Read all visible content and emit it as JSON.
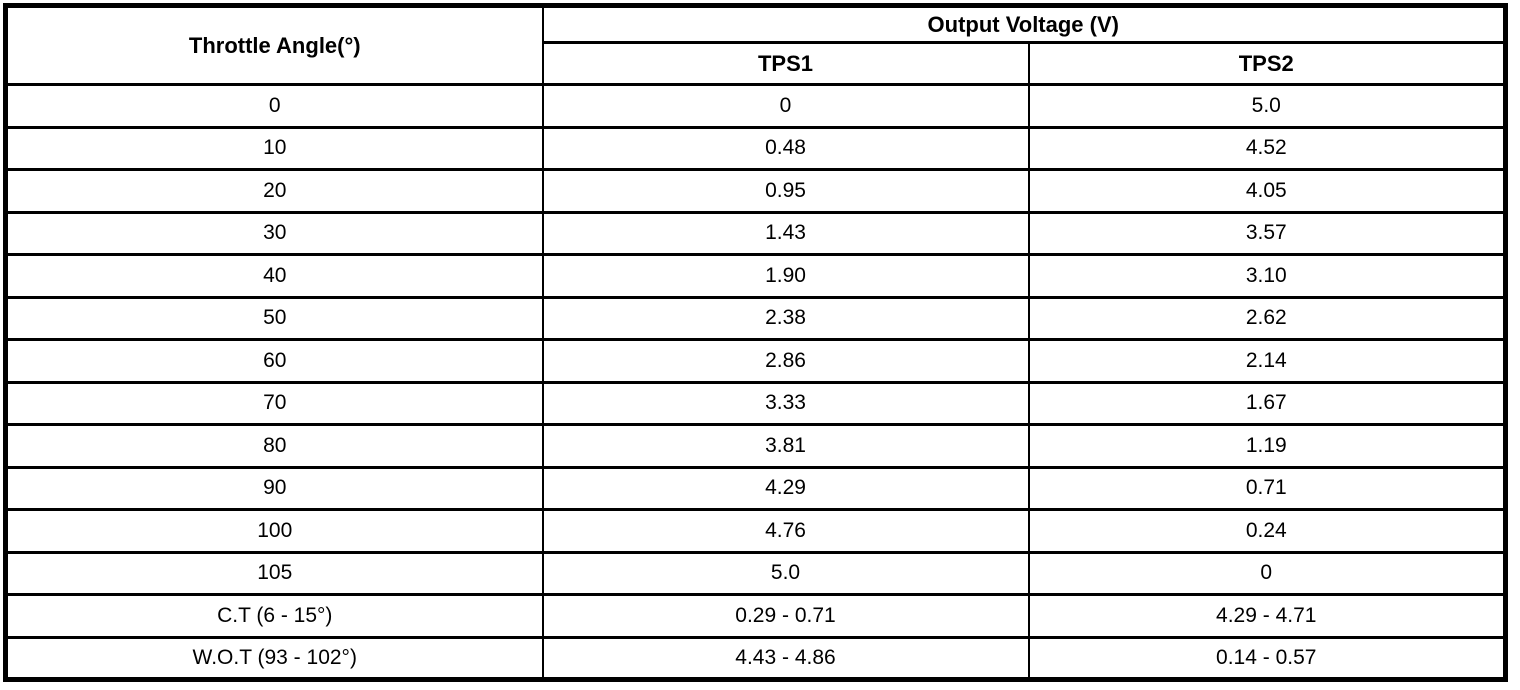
{
  "table": {
    "col1_header": "Throttle Angle(°)",
    "group_header": "Output Voltage (V)",
    "sub_headers": [
      "TPS1",
      "TPS2"
    ],
    "rows": [
      {
        "angle": "0",
        "tps1": "0",
        "tps2": "5.0"
      },
      {
        "angle": "10",
        "tps1": "0.48",
        "tps2": "4.52"
      },
      {
        "angle": "20",
        "tps1": "0.95",
        "tps2": "4.05"
      },
      {
        "angle": "30",
        "tps1": "1.43",
        "tps2": "3.57"
      },
      {
        "angle": "40",
        "tps1": "1.90",
        "tps2": "3.10"
      },
      {
        "angle": "50",
        "tps1": "2.38",
        "tps2": "2.62"
      },
      {
        "angle": "60",
        "tps1": "2.86",
        "tps2": "2.14"
      },
      {
        "angle": "70",
        "tps1": "3.33",
        "tps2": "1.67"
      },
      {
        "angle": "80",
        "tps1": "3.81",
        "tps2": "1.19"
      },
      {
        "angle": "90",
        "tps1": "4.29",
        "tps2": "0.71"
      },
      {
        "angle": "100",
        "tps1": "4.76",
        "tps2": "0.24"
      },
      {
        "angle": "105",
        "tps1": "5.0",
        "tps2": "0"
      },
      {
        "angle": "C.T (6 - 15°)",
        "tps1": "0.29 - 0.71",
        "tps2": "4.29 - 4.71"
      },
      {
        "angle": "W.O.T (93 - 102°)",
        "tps1": "4.43 - 4.86",
        "tps2": "0.14 - 0.57"
      }
    ],
    "colors": {
      "border": "#000000",
      "background": "#ffffff",
      "text": "#000000"
    }
  }
}
